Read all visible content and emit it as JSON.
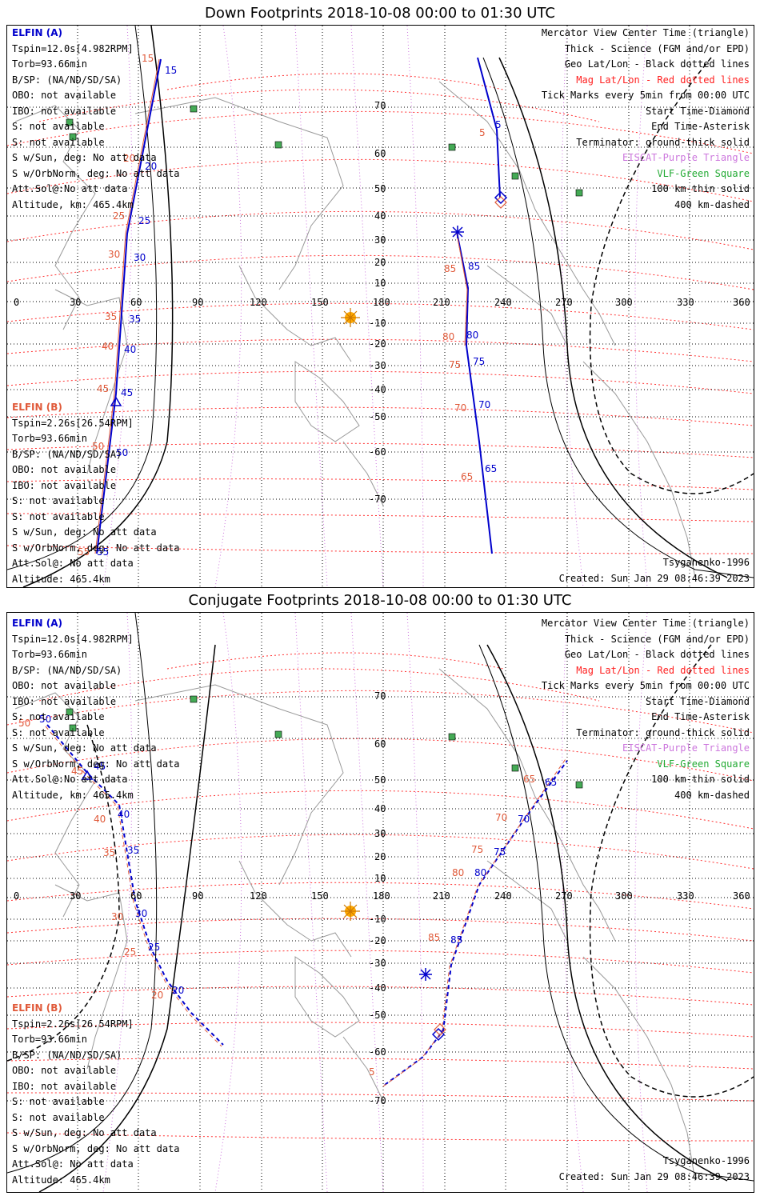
{
  "panels": [
    {
      "title": "Down Footprints 2018-10-08 00:00 to 01:30 UTC",
      "elfin_a": {
        "header": "ELFIN (A)",
        "lines": [
          "Tspin=12.0s[4.982RPM]",
          "Torb=93.66min",
          "B/SP: (NA/ND/SD/SA)",
          "OBO: not available",
          "IBO: not available",
          "S: not available",
          "S: not available",
          "S w/Sun, deg: No att data",
          "S w/OrbNorm, deg: No att data",
          "Att.Sol@:No att data",
          "Altitude, km: 465.4km"
        ]
      },
      "elfin_b": {
        "header": "ELFIN (B)",
        "lines": [
          "Tspin=2.26s[26.54RPM]",
          "Torb=93.66min",
          "B/SP: (NA/ND/SD/SA)",
          "OBO: not available",
          "IBO: not available",
          "S: not available",
          "S: not available",
          "S w/Sun, deg: No att data",
          "S w/OrbNorm, deg: No att data",
          "Att.Sol@: No att data",
          "Altitude: 465.4km"
        ]
      },
      "legend": [
        {
          "text": "Mercator View Center Time (triangle)",
          "color": "#000000"
        },
        {
          "text": "Thick - Science (FGM and/or EPD)",
          "color": "#000000"
        },
        {
          "text": "Geo Lat/Lon - Black dotted lines",
          "color": "#000000"
        },
        {
          "text": "Mag Lat/Lon - Red dotted lines",
          "color": "#ff2020"
        },
        {
          "text": "Tick Marks every 5min from 00:00 UTC",
          "color": "#000000"
        },
        {
          "text": "Start Time-Diamond",
          "color": "#000000"
        },
        {
          "text": "End Time-Asterisk",
          "color": "#000000"
        },
        {
          "text": "Terminator: ground-thick solid",
          "color": "#000000"
        },
        {
          "text": "EISCAT-Purple Triangle",
          "color": "#cc77dd"
        },
        {
          "text": "VLF-Green Square",
          "color": "#22aa33"
        },
        {
          "text": "100 km-thin solid",
          "color": "#000000"
        },
        {
          "text": "400 km-dashed",
          "color": "#000000"
        }
      ],
      "model": "Tsyganenko-1996",
      "created": "Created: Sun Jan 29 08:46:39 2023",
      "lon_labels": [
        "0",
        "30",
        "60",
        "90",
        "120",
        "150",
        "180",
        "210",
        "240",
        "270",
        "300",
        "330",
        "360"
      ],
      "lat_labels": [
        "70",
        "60",
        "50",
        "40",
        "30",
        "20",
        "10",
        "-10",
        "-20",
        "-30",
        "-40",
        "-50",
        "-60",
        "-70"
      ],
      "track_a_labels": [
        "5",
        "65",
        "70",
        "75",
        "80",
        "85"
      ],
      "track_a_mag_labels": [
        "5",
        "65",
        "70",
        "75",
        "80",
        "85"
      ],
      "track_b_labels": [
        "15",
        "20",
        "25",
        "30",
        "35",
        "40",
        "45",
        "50",
        "55"
      ],
      "track_b_mag_labels": [
        "15",
        "20",
        "25",
        "30",
        "35",
        "40",
        "45",
        "50",
        "55"
      ]
    },
    {
      "title": "Conjugate Footprints 2018-10-08 00:00 to 01:30 UTC",
      "elfin_a": {
        "header": "ELFIN (A)",
        "lines": [
          "Tspin=12.0s[4.982RPM]",
          "Torb=93.66min",
          "B/SP: (NA/ND/SD/SA)",
          "OBO: not available",
          "IBO: not available",
          "S: not available",
          "S: not available",
          "S w/Sun, deg: No att data",
          "S w/OrbNorm, deg: No att data",
          "Att.Sol@:No att data",
          "Altitude, km: 465.4km"
        ]
      },
      "elfin_b": {
        "header": "ELFIN (B)",
        "lines": [
          "Tspin=2.26s[26.54RPM]",
          "Torb=93.66min",
          "B/SP: (NA/ND/SD/SA)",
          "OBO: not available",
          "IBO: not available",
          "S: not available",
          "S: not available",
          "S w/Sun, deg: No att data",
          "S w/OrbNorm, deg: No att data",
          "Att.Sol@: No att data",
          "Altitude: 465.4km"
        ]
      },
      "legend": [
        {
          "text": "Mercator View Center Time (triangle)",
          "color": "#000000"
        },
        {
          "text": "Thick - Science (FGM and/or EPD)",
          "color": "#000000"
        },
        {
          "text": "Geo Lat/Lon - Black dotted lines",
          "color": "#000000"
        },
        {
          "text": "Mag Lat/Lon - Red dotted lines",
          "color": "#ff2020"
        },
        {
          "text": "Tick Marks every 5min from 00:00 UTC",
          "color": "#000000"
        },
        {
          "text": "Start Time-Diamond",
          "color": "#000000"
        },
        {
          "text": "End Time-Asterisk",
          "color": "#000000"
        },
        {
          "text": "Terminator: ground-thick solid",
          "color": "#000000"
        },
        {
          "text": "EISCAT-Purple Triangle",
          "color": "#cc77dd"
        },
        {
          "text": "VLF-Green Square",
          "color": "#22aa33"
        },
        {
          "text": "100 km-thin solid",
          "color": "#000000"
        },
        {
          "text": "400 km-dashed",
          "color": "#000000"
        }
      ],
      "model": "Tsyganenko-1996",
      "created": "Created: Sun Jan 29 08:46:39 2023",
      "lon_labels": [
        "0",
        "30",
        "60",
        "90",
        "120",
        "150",
        "180",
        "210",
        "240",
        "270",
        "300",
        "330",
        "360"
      ],
      "lat_labels": [
        "70",
        "60",
        "50",
        "40",
        "30",
        "20",
        "10",
        "-10",
        "-20",
        "-30",
        "-40",
        "-50",
        "-60",
        "-70"
      ],
      "track_a_labels": [
        "5",
        "65",
        "70",
        "75",
        "80",
        "85"
      ],
      "track_a_mag_labels": [
        "5",
        "65",
        "70",
        "75",
        "80",
        "85"
      ],
      "track_b_labels": [
        "20",
        "25",
        "30",
        "35",
        "40",
        "45",
        "50"
      ],
      "track_b_mag_labels": [
        "20",
        "25",
        "30",
        "35",
        "40",
        "45",
        "50"
      ]
    }
  ],
  "colors": {
    "elfin_a": "#0000cc",
    "elfin_b": "#e05a3a",
    "mag_grid": "#ff3030",
    "geo_grid": "#000000",
    "eiscat": "#cc77dd",
    "vlf": "#44aa55",
    "coast": "#999999",
    "sun": "#ffaa00"
  }
}
